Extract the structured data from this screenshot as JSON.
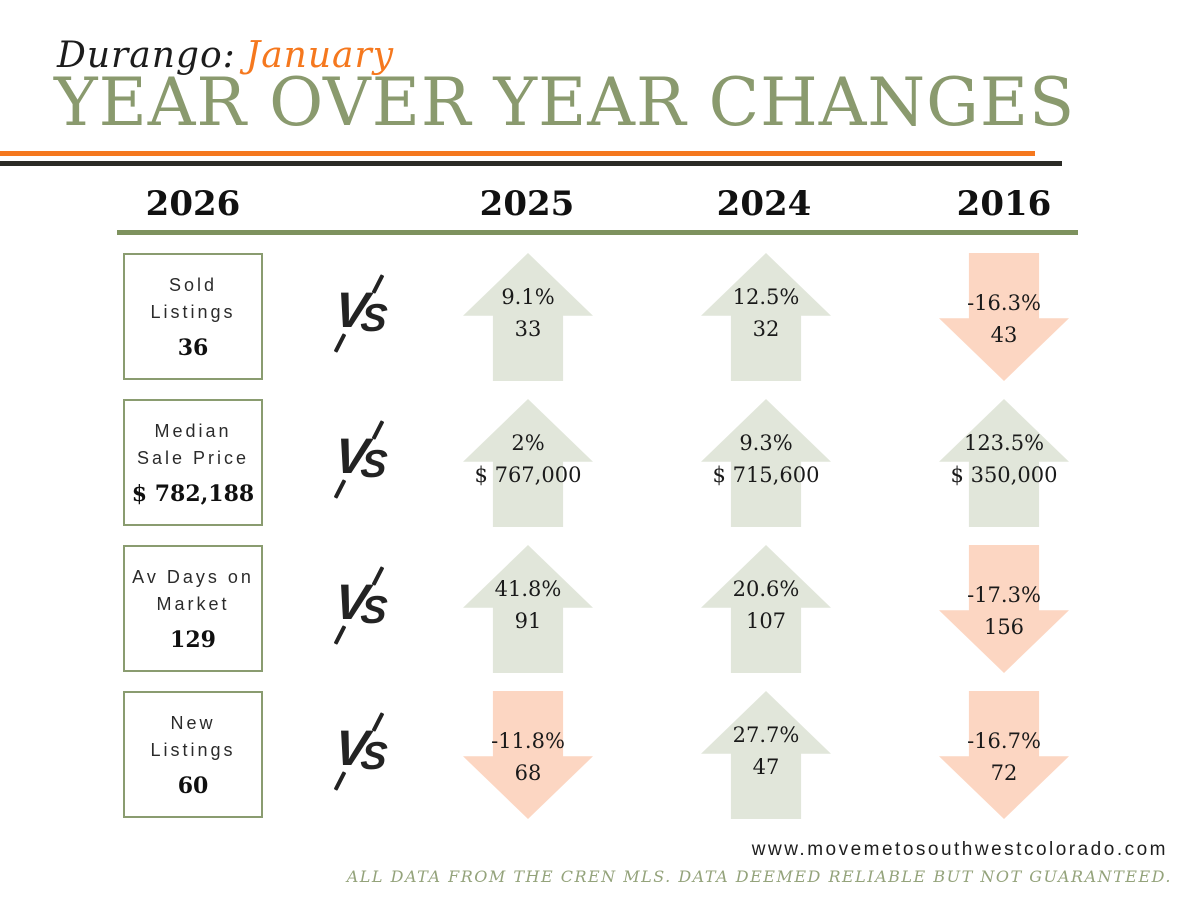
{
  "header": {
    "location": "Durango:",
    "month": "January",
    "title": "YEAR OVER YEAR CHANGES"
  },
  "columns": {
    "base_year": "2026",
    "compare_years": [
      "2025",
      "2024",
      "2016"
    ]
  },
  "vs_label_v": "V",
  "vs_label_s": "S",
  "rows": [
    {
      "label": "Sold Listings",
      "value": "36",
      "cells": [
        {
          "direction": "up",
          "pct": "9.1%",
          "value": "33"
        },
        {
          "direction": "up",
          "pct": "12.5%",
          "value": "32"
        },
        {
          "direction": "down",
          "pct": "-16.3%",
          "value": "43"
        }
      ]
    },
    {
      "label": "Median Sale Price",
      "value": "$ 782,188",
      "cells": [
        {
          "direction": "up",
          "pct": "2%",
          "value": "$ 767,000"
        },
        {
          "direction": "up",
          "pct": "9.3%",
          "value": "$ 715,600"
        },
        {
          "direction": "up",
          "pct": "123.5%",
          "value": "$ 350,000"
        }
      ]
    },
    {
      "label": "Av Days on Market",
      "value": "129",
      "cells": [
        {
          "direction": "up",
          "pct": "41.8%",
          "value": "91"
        },
        {
          "direction": "up",
          "pct": "20.6%",
          "value": "107"
        },
        {
          "direction": "down",
          "pct": "-17.3%",
          "value": "156"
        }
      ]
    },
    {
      "label": "New Listings",
      "value": "60",
      "cells": [
        {
          "direction": "down",
          "pct": "-11.8%",
          "value": "68"
        },
        {
          "direction": "up",
          "pct": "27.7%",
          "value": "47"
        },
        {
          "direction": "down",
          "pct": "-16.7%",
          "value": "72"
        }
      ]
    }
  ],
  "footer": {
    "website": "www.movemetosouthwestcolorado.com",
    "disclaimer": "ALL DATA FROM THE CREN MLS. DATA DEEMED RELIABLE BUT NOT GUARANTEED."
  },
  "colors": {
    "accent_orange": "#f5781e",
    "title_green": "#8a9a6e",
    "line_green": "#7e925e",
    "box_border_green": "#8a9c70",
    "arrow_up_fill": "#e1e6da",
    "arrow_down_fill": "#fcd6c2",
    "footer_green": "#94a37b",
    "dark_line": "#2b2b26"
  },
  "chart_data": {
    "type": "table",
    "title": "Durango: January — Year over Year Changes",
    "columns": [
      "2026",
      "2025",
      "2024",
      "2016"
    ],
    "rows": [
      {
        "metric": "Sold Listings",
        "current_2026": 36,
        "y2025": {
          "value": 33,
          "change_pct": 9.1,
          "direction": "up"
        },
        "y2024": {
          "value": 32,
          "change_pct": 12.5,
          "direction": "up"
        },
        "y2016": {
          "value": 43,
          "change_pct": -16.3,
          "direction": "down"
        }
      },
      {
        "metric": "Median Sale Price",
        "current_2026": 782188,
        "y2025": {
          "value": 767000,
          "change_pct": 2,
          "direction": "up"
        },
        "y2024": {
          "value": 715600,
          "change_pct": 9.3,
          "direction": "up"
        },
        "y2016": {
          "value": 350000,
          "change_pct": 123.5,
          "direction": "up"
        }
      },
      {
        "metric": "Av Days on Market",
        "current_2026": 129,
        "y2025": {
          "value": 91,
          "change_pct": 41.8,
          "direction": "up"
        },
        "y2024": {
          "value": 107,
          "change_pct": 20.6,
          "direction": "up"
        },
        "y2016": {
          "value": 156,
          "change_pct": -17.3,
          "direction": "down"
        }
      },
      {
        "metric": "New Listings",
        "current_2026": 60,
        "y2025": {
          "value": 68,
          "change_pct": -11.8,
          "direction": "down"
        },
        "y2024": {
          "value": 47,
          "change_pct": 27.7,
          "direction": "up"
        },
        "y2016": {
          "value": 72,
          "change_pct": -16.7,
          "direction": "down"
        }
      }
    ]
  }
}
